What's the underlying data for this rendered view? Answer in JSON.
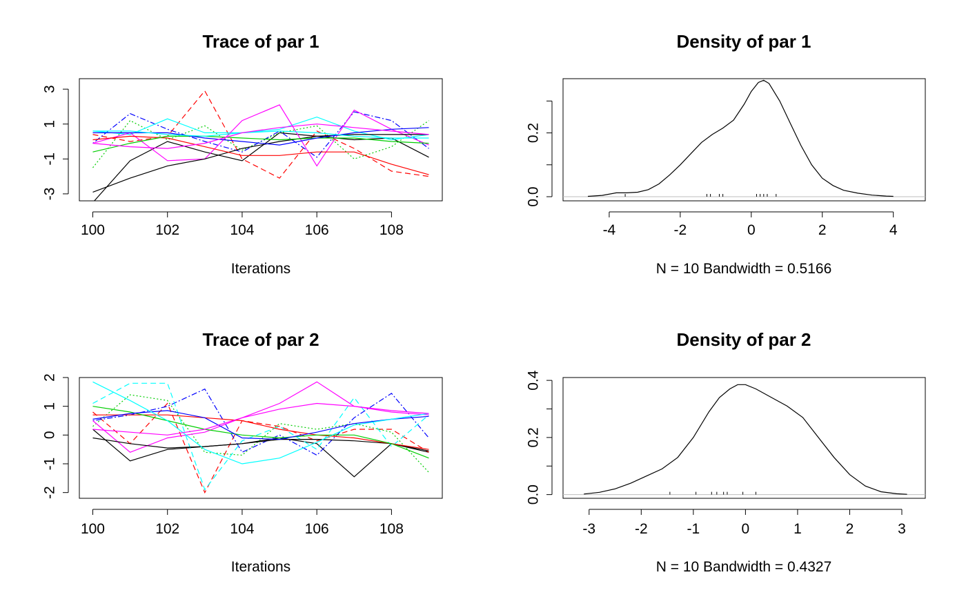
{
  "chart_data": [
    {
      "type": "line",
      "panel": "trace",
      "title": "Trace of par 1",
      "xlabel": "Iterations",
      "ylabel": "",
      "xlim": [
        100,
        109
      ],
      "ylim": [
        -3.4,
        3.6
      ],
      "xticks": [
        100,
        102,
        104,
        106,
        108
      ],
      "xtick_labels": [
        "100",
        "102",
        "104",
        "106",
        "108"
      ],
      "yticks": [
        -3,
        -1,
        1,
        3
      ],
      "ytick_labels": [
        "-3",
        "-1",
        "1",
        "3"
      ],
      "x": [
        100,
        101,
        102,
        103,
        104,
        105,
        106,
        107,
        108,
        109
      ],
      "series": [
        {
          "color": "#000000",
          "dash": "solid",
          "values": [
            -3.5,
            -1.1,
            0.0,
            -0.6,
            -1.1,
            0.5,
            0.3,
            0.1,
            0.2,
            -0.9
          ]
        },
        {
          "color": "#ff0000",
          "dash": "dashed",
          "values": [
            0.4,
            0.0,
            0.3,
            2.9,
            -1.0,
            -2.1,
            0.6,
            -0.4,
            -1.7,
            -2.0
          ]
        },
        {
          "color": "#00cd00",
          "dash": "dotted",
          "values": [
            -1.5,
            1.2,
            0.1,
            0.9,
            -0.5,
            0.5,
            0.9,
            -1.0,
            -0.3,
            1.2
          ]
        },
        {
          "color": "#0000ff",
          "dash": "dotdash",
          "values": [
            -0.1,
            1.6,
            0.7,
            0.0,
            -0.6,
            0.6,
            -0.9,
            1.7,
            1.2,
            -0.4
          ]
        },
        {
          "color": "#00ffff",
          "dash": "solid",
          "values": [
            0.6,
            0.4,
            1.3,
            0.5,
            0.5,
            0.7,
            1.4,
            0.6,
            0.1,
            0.4
          ]
        },
        {
          "color": "#ff00ff",
          "dash": "solid",
          "values": [
            -0.1,
            0.5,
            -1.1,
            -1.0,
            1.2,
            2.1,
            -1.4,
            1.8,
            0.7,
            -0.2
          ]
        },
        {
          "color": "#000000",
          "dash": "solid",
          "values": [
            -2.9,
            -2.1,
            -1.4,
            -1.0,
            -0.4,
            0.0,
            0.3,
            0.4,
            0.4,
            0.4
          ]
        },
        {
          "color": "#ff0000",
          "dash": "solid",
          "values": [
            0.1,
            0.3,
            0.2,
            -0.3,
            -0.8,
            -0.8,
            -0.6,
            -0.6,
            -1.3,
            -1.9
          ]
        },
        {
          "color": "#00cd00",
          "dash": "solid",
          "values": [
            -0.6,
            -0.1,
            0.3,
            0.3,
            0.2,
            0.1,
            0.2,
            0.2,
            0.0,
            -0.1
          ]
        },
        {
          "color": "#0000ff",
          "dash": "solid",
          "values": [
            0.5,
            0.5,
            0.5,
            0.2,
            0.0,
            -0.2,
            0.2,
            0.5,
            0.7,
            0.8
          ]
        },
        {
          "color": "#00ffff",
          "dash": "solid",
          "values": [
            0.6,
            0.6,
            0.4,
            0.3,
            0.5,
            0.6,
            0.5,
            0.3,
            0.2,
            0.2
          ]
        },
        {
          "color": "#ff00ff",
          "dash": "solid",
          "values": [
            -0.1,
            -0.3,
            -0.4,
            -0.1,
            0.5,
            0.8,
            1.0,
            0.8,
            0.6,
            0.4
          ]
        }
      ]
    },
    {
      "type": "line",
      "panel": "density",
      "title": "Density of par 1",
      "xlabel": "N = 10   Bandwidth = 0.5166",
      "ylabel": "",
      "xlim": [
        -5.3,
        4.9
      ],
      "ylim": [
        -0.013,
        0.37
      ],
      "xticks": [
        -4,
        -2,
        0,
        2,
        4
      ],
      "xtick_labels": [
        "-4",
        "-2",
        "0",
        "2",
        "4"
      ],
      "yticks": [
        0.0,
        0.2
      ],
      "ytick_labels": [
        "0.0",
        "0.2"
      ],
      "extra_yticks": [
        0.1,
        0.3
      ],
      "x": [
        -4.6,
        -4.2,
        -3.8,
        -3.5,
        -3.2,
        -2.9,
        -2.6,
        -2.3,
        -2.0,
        -1.7,
        -1.4,
        -1.1,
        -0.8,
        -0.5,
        -0.2,
        0.0,
        0.2,
        0.35,
        0.5,
        0.8,
        1.1,
        1.4,
        1.7,
        2.0,
        2.3,
        2.6,
        3.0,
        3.4,
        3.8,
        4.0
      ],
      "values": [
        0.001,
        0.004,
        0.012,
        0.012,
        0.014,
        0.022,
        0.04,
        0.068,
        0.1,
        0.135,
        0.17,
        0.195,
        0.215,
        0.24,
        0.29,
        0.33,
        0.358,
        0.365,
        0.355,
        0.3,
        0.23,
        0.16,
        0.1,
        0.058,
        0.035,
        0.02,
        0.011,
        0.005,
        0.002,
        0.001
      ],
      "rug": [
        -3.55,
        -1.25,
        -1.15,
        -0.9,
        -0.8,
        0.15,
        0.25,
        0.35,
        0.45,
        0.7
      ]
    },
    {
      "type": "line",
      "panel": "trace",
      "title": "Trace of par 2",
      "xlabel": "Iterations",
      "ylabel": "",
      "xlim": [
        100,
        109
      ],
      "ylim": [
        -2.2,
        2.0
      ],
      "xticks": [
        100,
        102,
        104,
        106,
        108
      ],
      "xtick_labels": [
        "100",
        "102",
        "104",
        "106",
        "108"
      ],
      "yticks": [
        -2,
        -1,
        0,
        1,
        2
      ],
      "ytick_labels": [
        "-2",
        "-1",
        "0",
        "1",
        "2"
      ],
      "x": [
        100,
        101,
        102,
        103,
        104,
        105,
        106,
        107,
        108,
        109
      ],
      "series": [
        {
          "color": "#000000",
          "dash": "solid",
          "values": [
            0.2,
            -0.9,
            -0.5,
            -0.4,
            -0.3,
            -0.1,
            -0.3,
            -1.45,
            -0.3,
            -0.6
          ]
        },
        {
          "color": "#ff0000",
          "dash": "dashed",
          "values": [
            0.8,
            -0.3,
            1.1,
            -2.0,
            0.5,
            0.3,
            -0.2,
            0.2,
            0.2,
            -0.6
          ]
        },
        {
          "color": "#00cd00",
          "dash": "dotted",
          "values": [
            0.3,
            1.4,
            1.2,
            -0.6,
            -0.7,
            0.4,
            0.2,
            0.4,
            0.1,
            -1.3
          ]
        },
        {
          "color": "#0000ff",
          "dash": "dotdash",
          "values": [
            0.5,
            0.7,
            1.0,
            1.6,
            -0.6,
            0.0,
            -0.7,
            0.6,
            1.45,
            -0.1
          ]
        },
        {
          "color": "#00ffff",
          "dash": "dashed",
          "values": [
            1.1,
            1.8,
            1.8,
            -1.9,
            -0.2,
            0.3,
            -0.5,
            1.3,
            -0.4,
            0.7
          ]
        },
        {
          "color": "#ff00ff",
          "dash": "solid",
          "values": [
            0.5,
            -0.6,
            -0.1,
            0.1,
            0.6,
            1.1,
            1.85,
            1.0,
            0.8,
            0.7
          ]
        },
        {
          "color": "#000000",
          "dash": "solid",
          "values": [
            -0.1,
            -0.3,
            -0.45,
            -0.4,
            -0.3,
            -0.15,
            -0.15,
            -0.2,
            -0.3,
            -0.55
          ]
        },
        {
          "color": "#ff0000",
          "dash": "solid",
          "values": [
            0.7,
            0.7,
            0.7,
            0.6,
            0.5,
            0.2,
            0.0,
            -0.1,
            -0.3,
            -0.5
          ]
        },
        {
          "color": "#00cd00",
          "dash": "solid",
          "values": [
            1.0,
            0.8,
            0.5,
            0.2,
            0.0,
            -0.1,
            0.0,
            0.0,
            -0.3,
            -0.8
          ]
        },
        {
          "color": "#0000ff",
          "dash": "solid",
          "values": [
            0.55,
            0.75,
            0.85,
            0.6,
            -0.1,
            -0.15,
            0.1,
            0.4,
            0.55,
            0.65
          ]
        },
        {
          "color": "#00ffff",
          "dash": "solid",
          "values": [
            1.85,
            1.2,
            0.5,
            -0.5,
            -1.0,
            -0.8,
            -0.25,
            0.35,
            0.55,
            0.75
          ]
        },
        {
          "color": "#ff00ff",
          "dash": "solid",
          "values": [
            0.2,
            0.1,
            0.0,
            0.2,
            0.6,
            0.9,
            1.1,
            1.0,
            0.85,
            0.75
          ]
        }
      ]
    },
    {
      "type": "line",
      "panel": "density",
      "title": "Density of par 2",
      "xlabel": "N = 10   Bandwidth = 0.4327",
      "ylabel": "",
      "xlim": [
        -3.5,
        3.45
      ],
      "ylim": [
        -0.013,
        0.41
      ],
      "xticks": [
        -3,
        -2,
        -1,
        0,
        1,
        2,
        3
      ],
      "xtick_labels": [
        "-3",
        "-2",
        "-1",
        "0",
        "1",
        "2",
        "3"
      ],
      "yticks": [
        0.0,
        0.2,
        0.4
      ],
      "ytick_labels": [
        "0.0",
        "0.2",
        "0.4"
      ],
      "extra_yticks": [
        0.1,
        0.3
      ],
      "x": [
        -3.1,
        -2.8,
        -2.5,
        -2.2,
        -1.9,
        -1.6,
        -1.3,
        -1.0,
        -0.7,
        -0.5,
        -0.3,
        -0.15,
        0.0,
        0.2,
        0.5,
        0.8,
        1.1,
        1.4,
        1.7,
        2.0,
        2.3,
        2.6,
        2.9,
        3.1
      ],
      "values": [
        0.002,
        0.008,
        0.02,
        0.04,
        0.065,
        0.09,
        0.13,
        0.2,
        0.29,
        0.34,
        0.37,
        0.385,
        0.385,
        0.37,
        0.34,
        0.31,
        0.27,
        0.2,
        0.13,
        0.07,
        0.03,
        0.01,
        0.003,
        0.001
      ],
      "rug": [
        -1.45,
        -0.95,
        -0.65,
        -0.55,
        -0.42,
        -0.35,
        -0.05,
        0.2
      ]
    }
  ]
}
